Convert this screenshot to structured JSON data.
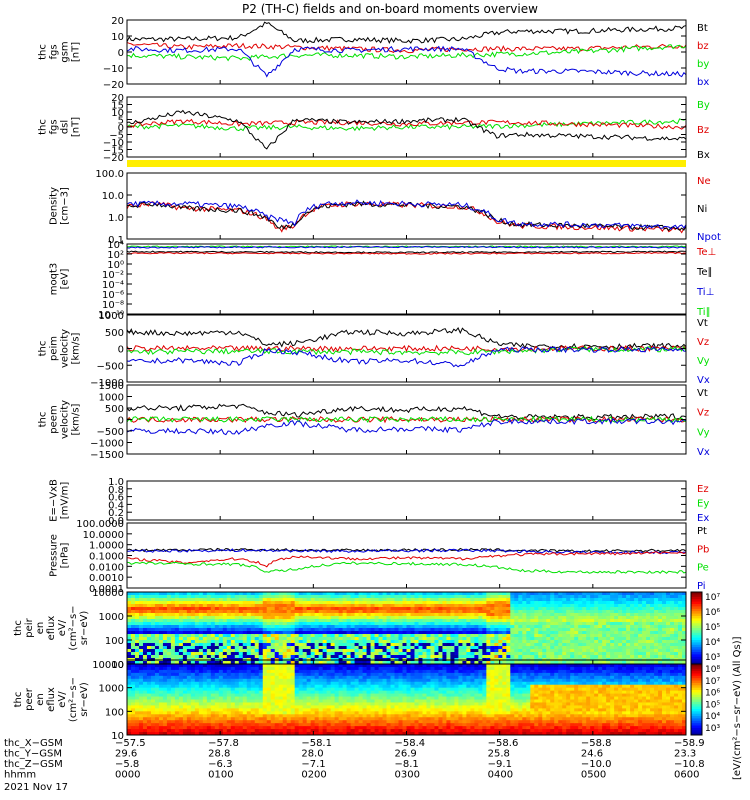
{
  "title": "P2 (TH-C) fields and on-board moments overview",
  "colors": {
    "black": "#000000",
    "red": "#e00000",
    "green": "#00e000",
    "blue": "#0000dd",
    "flag": "#ffee00"
  },
  "chart_data": [
    {
      "id": "fgs-gsm",
      "type": "line",
      "ylabel": [
        "thc",
        "fgs",
        "gsm",
        "[nT]"
      ],
      "ylim": [
        -20,
        20
      ],
      "yticks": [
        "20",
        "10",
        "0",
        "−10",
        "−20"
      ],
      "legend": [
        {
          "name": "Bt",
          "color": "black"
        },
        {
          "name": "bz",
          "color": "red"
        },
        {
          "name": "by",
          "color": "green"
        },
        {
          "name": "bx",
          "color": "blue"
        }
      ],
      "series": [
        {
          "name": "Bt",
          "color": "black",
          "x": [
            0,
            0.1,
            0.2,
            0.25,
            0.3,
            0.4,
            0.5,
            0.6,
            0.66,
            0.7,
            0.8,
            0.9,
            1
          ],
          "y": [
            8,
            8,
            9,
            18,
            7,
            8,
            7,
            8,
            12,
            13,
            13,
            14,
            15
          ]
        },
        {
          "name": "bz",
          "color": "red",
          "x": [
            0,
            0.1,
            0.2,
            0.3,
            0.4,
            0.5,
            0.6,
            0.7,
            0.8,
            0.9,
            1
          ],
          "y": [
            5,
            3,
            4,
            3,
            2,
            1,
            2,
            2,
            2,
            3,
            4
          ]
        },
        {
          "name": "by",
          "color": "green",
          "x": [
            0,
            0.1,
            0.2,
            0.3,
            0.4,
            0.5,
            0.6,
            0.7,
            0.8,
            0.9,
            1
          ],
          "y": [
            -2,
            -3,
            -4,
            -2,
            -2,
            -3,
            -2,
            -1,
            0,
            2,
            4
          ]
        },
        {
          "name": "bx",
          "color": "blue",
          "x": [
            0,
            0.1,
            0.2,
            0.25,
            0.3,
            0.4,
            0.5,
            0.6,
            0.66,
            0.7,
            0.8,
            0.9,
            1
          ],
          "y": [
            2,
            1,
            2,
            -15,
            2,
            1,
            2,
            2,
            -10,
            -12,
            -12,
            -13,
            -14
          ]
        }
      ]
    },
    {
      "id": "fgs-dsl",
      "type": "line",
      "ylabel": [
        "thc",
        "fgs",
        "dsl",
        "[nT]"
      ],
      "ylim": [
        -20,
        20
      ],
      "yticks": [
        "20",
        "15",
        "10",
        "5",
        "0",
        "−5",
        "−10",
        "−15",
        "−20"
      ],
      "legend": [
        {
          "name": "By",
          "color": "green"
        },
        {
          "name": "Bz",
          "color": "red"
        },
        {
          "name": "Bx",
          "color": "black"
        }
      ],
      "series": [
        {
          "name": "By",
          "color": "green",
          "x": [
            0,
            0.1,
            0.2,
            0.3,
            0.4,
            0.5,
            0.6,
            0.7,
            0.8,
            0.9,
            1
          ],
          "y": [
            0,
            1,
            -1,
            0,
            -1,
            0,
            0,
            1,
            2,
            3,
            4
          ]
        },
        {
          "name": "Bz",
          "color": "red",
          "x": [
            0,
            0.1,
            0.2,
            0.3,
            0.4,
            0.5,
            0.6,
            0.7,
            0.8,
            0.9,
            1
          ],
          "y": [
            1,
            4,
            2,
            3,
            3,
            2,
            3,
            3,
            2,
            1,
            0
          ]
        },
        {
          "name": "Bx",
          "color": "black",
          "x": [
            0,
            0.1,
            0.2,
            0.25,
            0.3,
            0.4,
            0.5,
            0.6,
            0.66,
            0.7,
            0.8,
            0.9,
            1
          ],
          "y": [
            2,
            10,
            4,
            -15,
            5,
            3,
            4,
            5,
            -6,
            -5,
            -6,
            -7,
            -8
          ]
        }
      ]
    },
    {
      "id": "density",
      "type": "line",
      "scale": "log",
      "ylabel": [
        "Density",
        "[cm−3]"
      ],
      "ylim": [
        0.1,
        100
      ],
      "yticks": [
        "100.0",
        "10.0",
        "1.0",
        "0.1"
      ],
      "legend": [
        {
          "name": "Ne",
          "color": "red"
        },
        {
          "name": "Ni",
          "color": "black"
        },
        {
          "name": "Npot",
          "color": "blue"
        }
      ],
      "series": [
        {
          "name": "Ne",
          "color": "red",
          "x": [
            0,
            0.05,
            0.1,
            0.2,
            0.25,
            0.27,
            0.3,
            0.35,
            0.4,
            0.5,
            0.6,
            0.66,
            0.7,
            0.8,
            0.9,
            1
          ],
          "y": [
            3,
            4,
            2.5,
            2,
            0.8,
            0.25,
            0.4,
            3,
            4,
            3.5,
            3,
            0.6,
            0.4,
            0.35,
            0.3,
            0.25
          ]
        },
        {
          "name": "Ni",
          "color": "black",
          "x": [
            0,
            0.05,
            0.1,
            0.2,
            0.25,
            0.27,
            0.3,
            0.35,
            0.4,
            0.5,
            0.6,
            0.66,
            0.7,
            0.8,
            0.9,
            1
          ],
          "y": [
            3,
            4,
            2.5,
            2,
            0.9,
            0.3,
            0.45,
            3,
            4,
            3.5,
            3,
            0.7,
            0.45,
            0.4,
            0.35,
            0.3
          ]
        },
        {
          "name": "Npot",
          "color": "blue",
          "x": [
            0,
            0.1,
            0.2,
            0.25,
            0.3,
            0.35,
            0.4,
            0.5,
            0.6,
            0.66,
            0.7,
            0.8,
            0.9,
            1
          ],
          "y": [
            4,
            4,
            3,
            1,
            0.5,
            4,
            4.5,
            4,
            3.5,
            0.8,
            0.5,
            0.45,
            0.4,
            0.35
          ]
        }
      ]
    },
    {
      "id": "temperature",
      "type": "line",
      "scale": "log",
      "ylabel": [
        "moqt3",
        "[eV]"
      ],
      "ylim": [
        1e-10,
        10000.0
      ],
      "yticks": [
        "10⁴",
        "10²",
        "10⁰",
        "10⁻²",
        "10⁻⁴",
        "10⁻⁶",
        "10⁻⁸",
        "10⁻¹⁰"
      ],
      "legend": [
        {
          "name": "Te⊥",
          "color": "red"
        },
        {
          "name": "Te∥",
          "color": "black"
        },
        {
          "name": "Ti⊥",
          "color": "blue"
        },
        {
          "name": "Ti∥",
          "color": "green"
        }
      ],
      "series": [
        {
          "name": "Ti∥",
          "color": "green",
          "x": [
            0,
            0.5,
            1
          ],
          "y": [
            3000,
            3000,
            3000
          ]
        },
        {
          "name": "Ti⊥",
          "color": "blue",
          "x": [
            0,
            0.5,
            1
          ],
          "y": [
            2000,
            2500,
            2000
          ]
        },
        {
          "name": "Te∥",
          "color": "black",
          "x": [
            0,
            0.5,
            1
          ],
          "y": [
            300,
            200,
            300
          ]
        },
        {
          "name": "Te⊥",
          "color": "red",
          "x": [
            0,
            0.5,
            1
          ],
          "y": [
            150,
            120,
            150
          ]
        }
      ]
    },
    {
      "id": "peim-velocity",
      "type": "line",
      "ylabel": [
        "thc",
        "peim",
        "velocity",
        "[km/s]"
      ],
      "ylim": [
        -1000,
        1000
      ],
      "yticks": [
        "1000",
        "500",
        "0",
        "−500",
        "−1000"
      ],
      "legend": [
        {
          "name": "Vt",
          "color": "black"
        },
        {
          "name": "Vz",
          "color": "red"
        },
        {
          "name": "Vy",
          "color": "green"
        },
        {
          "name": "Vx",
          "color": "blue"
        }
      ],
      "series": [
        {
          "name": "Vt",
          "color": "black",
          "x": [
            0,
            0.1,
            0.2,
            0.25,
            0.3,
            0.4,
            0.5,
            0.6,
            0.66,
            0.7,
            0.8,
            0.9,
            1
          ],
          "y": [
            500,
            450,
            500,
            120,
            150,
            500,
            450,
            550,
            150,
            80,
            70,
            70,
            80
          ]
        },
        {
          "name": "Vz",
          "color": "red",
          "x": [
            0,
            0.5,
            1
          ],
          "y": [
            0,
            0,
            0
          ]
        },
        {
          "name": "Vy",
          "color": "green",
          "x": [
            0,
            0.2,
            0.4,
            0.6,
            0.8,
            1
          ],
          "y": [
            -100,
            -80,
            -100,
            -120,
            -20,
            -30
          ]
        },
        {
          "name": "Vx",
          "color": "blue",
          "x": [
            0,
            0.1,
            0.2,
            0.25,
            0.3,
            0.4,
            0.5,
            0.6,
            0.66,
            0.7,
            0.8,
            0.9,
            1
          ],
          "y": [
            -400,
            -350,
            -450,
            -50,
            -100,
            -400,
            -350,
            -500,
            -50,
            -30,
            -30,
            -30,
            -30
          ]
        }
      ]
    },
    {
      "id": "peem-velocity",
      "type": "line",
      "ylabel": [
        "thc",
        "peem",
        "velocity",
        "[km/s]"
      ],
      "ylim": [
        -1500,
        1500
      ],
      "yticks": [
        "1500",
        "1000",
        "500",
        "0",
        "−500",
        "−1000",
        "−1500"
      ],
      "legend": [
        {
          "name": "Vt",
          "color": "black"
        },
        {
          "name": "Vz",
          "color": "red"
        },
        {
          "name": "Vy",
          "color": "green"
        },
        {
          "name": "Vx",
          "color": "blue"
        }
      ],
      "series": [
        {
          "name": "Vt",
          "color": "black",
          "x": [
            0,
            0.1,
            0.2,
            0.25,
            0.3,
            0.4,
            0.5,
            0.6,
            0.66,
            0.7,
            0.8,
            0.9,
            1
          ],
          "y": [
            500,
            500,
            600,
            300,
            200,
            500,
            400,
            500,
            150,
            100,
            100,
            100,
            150
          ]
        },
        {
          "name": "Vz",
          "color": "red",
          "x": [
            0,
            0.5,
            1
          ],
          "y": [
            0,
            0,
            0
          ]
        },
        {
          "name": "Vy",
          "color": "green",
          "x": [
            0,
            0.5,
            1
          ],
          "y": [
            0,
            0,
            0
          ]
        },
        {
          "name": "Vx",
          "color": "blue",
          "x": [
            0,
            0.1,
            0.2,
            0.25,
            0.3,
            0.4,
            0.5,
            0.6,
            0.66,
            0.7,
            0.8,
            0.9,
            1
          ],
          "y": [
            -500,
            -500,
            -550,
            -250,
            -150,
            -450,
            -400,
            -450,
            -100,
            -80,
            -80,
            -80,
            -100
          ]
        }
      ]
    },
    {
      "id": "efield",
      "type": "line",
      "ylabel": [
        "E=−VxB",
        "[mV/m]"
      ],
      "ylim": [
        0,
        1
      ],
      "yticks": [
        "1.0",
        "0.8",
        "0.6",
        "0.4",
        "0.2",
        "0.0"
      ],
      "legend": [
        {
          "name": "Ez",
          "color": "red"
        },
        {
          "name": "Ey",
          "color": "green"
        },
        {
          "name": "Ex",
          "color": "blue"
        }
      ],
      "series": []
    },
    {
      "id": "pressure",
      "type": "line",
      "scale": "log",
      "ylabel": [
        "Pressure",
        "[nPa]"
      ],
      "ylim": [
        0.0001,
        100
      ],
      "yticks": [
        "100.0000",
        "10.0000",
        "1.0000",
        "0.1000",
        "0.0100",
        "0.0010",
        "0.0001"
      ],
      "legend": [
        {
          "name": "Pt",
          "color": "black"
        },
        {
          "name": "Pb",
          "color": "red"
        },
        {
          "name": "Pe",
          "color": "green"
        },
        {
          "name": "Pi",
          "color": "blue"
        }
      ],
      "series": [
        {
          "name": "Pt",
          "color": "black",
          "x": [
            0,
            0.2,
            0.4,
            0.6,
            0.8,
            1
          ],
          "y": [
            0.3,
            0.35,
            0.3,
            0.35,
            0.25,
            0.3
          ]
        },
        {
          "name": "Pi",
          "color": "blue",
          "x": [
            0,
            0.2,
            0.4,
            0.6,
            0.8,
            1
          ],
          "y": [
            0.25,
            0.3,
            0.25,
            0.3,
            0.2,
            0.2
          ]
        },
        {
          "name": "Pb",
          "color": "red",
          "x": [
            0,
            0.1,
            0.2,
            0.25,
            0.3,
            0.4,
            0.5,
            0.6,
            0.7,
            0.8,
            0.9,
            1
          ],
          "y": [
            0.05,
            0.02,
            0.05,
            0.01,
            0.08,
            0.05,
            0.06,
            0.05,
            0.12,
            0.15,
            0.15,
            0.2
          ]
        },
        {
          "name": "Pe",
          "color": "green",
          "x": [
            0,
            0.2,
            0.25,
            0.3,
            0.4,
            0.6,
            0.7,
            0.8,
            1
          ],
          "y": [
            0.02,
            0.015,
            0.003,
            0.005,
            0.02,
            0.015,
            0.004,
            0.003,
            0.003
          ]
        }
      ]
    },
    {
      "id": "peir-eflux",
      "type": "heatmap",
      "ylabel": [
        "thc",
        "peir",
        "en",
        "eflux",
        "eV/",
        "(cm²−s−",
        "sr−eV)"
      ],
      "ylim": [
        5,
        20000
      ],
      "yticks": [
        "10000",
        "1000",
        "100",
        "10"
      ],
      "colorbar": {
        "min_exp": 3,
        "max_exp": 7,
        "labels": [
          "10⁷",
          "10⁶",
          "10⁵",
          "10⁴",
          "10³"
        ]
      }
    },
    {
      "id": "peer-eflux",
      "type": "heatmap",
      "ylabel": [
        "thc",
        "peer",
        "en",
        "eflux",
        "eV/",
        "(cm²−s−",
        "sr−eV)"
      ],
      "ylim": [
        5,
        20000
      ],
      "yticks": [
        "10000",
        "1000",
        "100",
        "10"
      ],
      "colorbar": {
        "min_exp": 3,
        "max_exp": 8,
        "labels": [
          "10⁸",
          "10⁷",
          "10⁶",
          "10⁵",
          "10⁴",
          "10³"
        ]
      }
    }
  ],
  "colorbar_title": "[eV/(cm²−s−sr−eV) (All Qs)]",
  "xaxis": {
    "row_labels": [
      "thc_X−GSM",
      "thc_Y−GSM",
      "thc_Z−GSM",
      "hhmm"
    ],
    "columns": [
      [
        "−57.5",
        "29.6",
        "−5.8",
        "0000"
      ],
      [
        "−57.8",
        "28.8",
        "−6.3",
        "0100"
      ],
      [
        "−58.1",
        "28.0",
        "−7.1",
        "0200"
      ],
      [
        "−58.4",
        "26.9",
        "−8.1",
        "0300"
      ],
      [
        "−58.6",
        "25.8",
        "−9.1",
        "0400"
      ],
      [
        "−58.8",
        "24.6",
        "−10.0",
        "0500"
      ],
      [
        "−58.9",
        "23.3",
        "−10.8",
        "0600"
      ]
    ],
    "date": "2021 Nov 17"
  }
}
